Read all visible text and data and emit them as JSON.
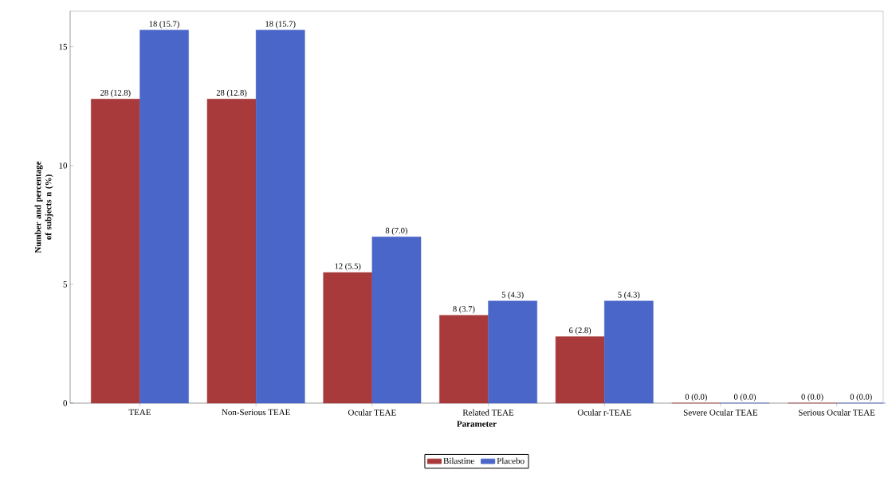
{
  "chart_data": {
    "type": "bar",
    "xlabel": "Parameter",
    "ylabel": "Number and percentage of subjects n (%)",
    "categories": [
      "TEAE",
      "Non-Serious TEAE",
      "Ocular TEAE",
      "Related TEAE",
      "Ocular r-TEAE",
      "Severe Ocular TEAE",
      "Serious Ocular TEAE"
    ],
    "series": [
      {
        "name": "Bilastine",
        "color": "#a83a3c",
        "values": [
          12.8,
          12.8,
          5.5,
          3.7,
          2.8,
          0,
          0
        ],
        "value_labels": [
          "28 (12.8)",
          "28 (12.8)",
          "12 (5.5)",
          "8 (3.7)",
          "6 (2.8)",
          "0 (0.0)",
          "0 (0.0)"
        ]
      },
      {
        "name": "Placebo",
        "color": "#4a66c8",
        "values": [
          15.7,
          15.7,
          7.0,
          4.3,
          4.3,
          0,
          0
        ],
        "value_labels": [
          "18 (15.7)",
          "18 (15.7)",
          "8 (7.0)",
          "5 (4.3)",
          "5 (4.3)",
          "0 (0.0)",
          "0 (0.0)"
        ]
      }
    ],
    "ylim": [
      0,
      16.5
    ],
    "yticks": [
      0,
      5,
      10,
      15
    ],
    "legend": "bottom"
  }
}
